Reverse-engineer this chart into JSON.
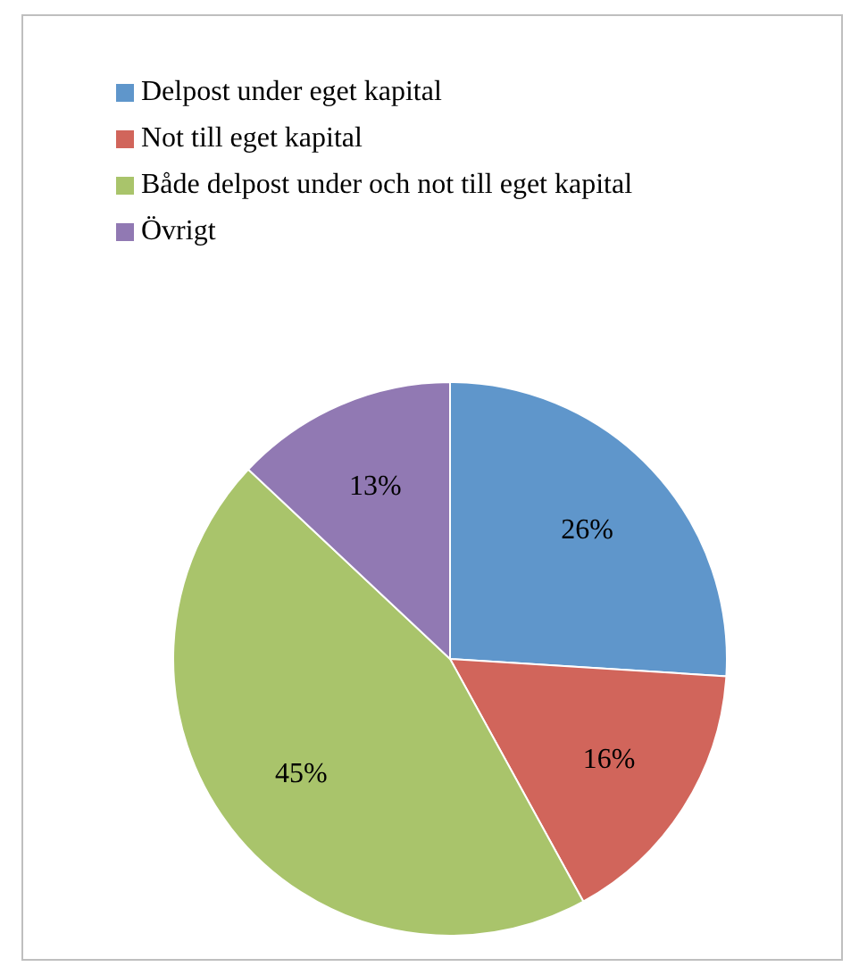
{
  "chart_data": {
    "type": "pie",
    "categories": [
      "Delpost under eget kapital",
      "Not till eget kapital",
      "Både delpost under och not till eget kapital",
      "Övrigt"
    ],
    "values": [
      26,
      16,
      45,
      13
    ],
    "colors": [
      "#5f96cb",
      "#d1655b",
      "#a9c46b",
      "#9179b3"
    ],
    "value_labels": [
      "26%",
      "16%",
      "45%",
      "13%"
    ],
    "legend": "top left"
  }
}
